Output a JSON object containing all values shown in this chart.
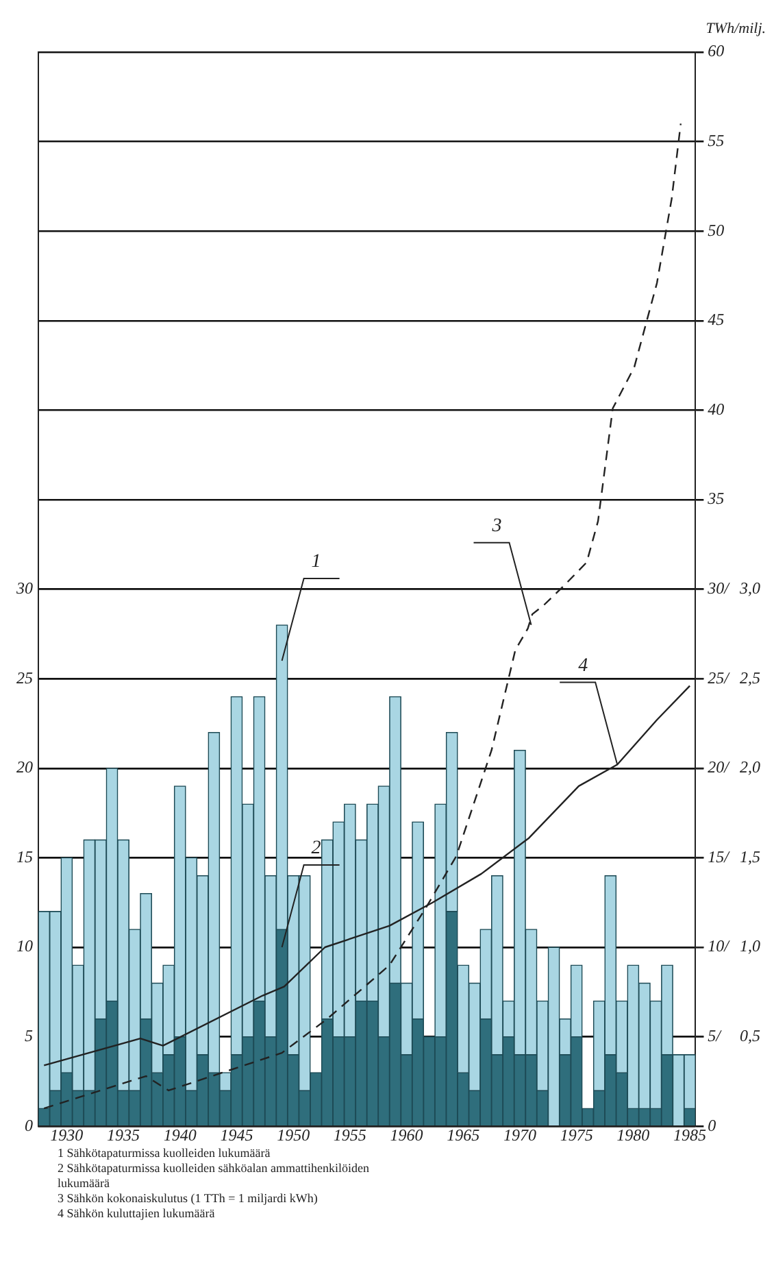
{
  "chart_data": {
    "type": "bar",
    "y2label": "TWh/milj.",
    "x": [
      1928,
      1929,
      1930,
      1931,
      1932,
      1933,
      1934,
      1935,
      1936,
      1937,
      1938,
      1939,
      1940,
      1941,
      1942,
      1943,
      1944,
      1945,
      1946,
      1947,
      1948,
      1949,
      1950,
      1951,
      1952,
      1953,
      1954,
      1955,
      1956,
      1957,
      1958,
      1959,
      1960,
      1961,
      1962,
      1963,
      1964,
      1965,
      1966,
      1967,
      1968,
      1969,
      1970,
      1971,
      1972,
      1973,
      1974,
      1975,
      1976,
      1977,
      1978,
      1979,
      1980,
      1981,
      1982,
      1983,
      1984,
      1985
    ],
    "xlim": [
      1927.5,
      1985.5
    ],
    "xticks": [
      1930,
      1935,
      1940,
      1945,
      1950,
      1955,
      1960,
      1965,
      1970,
      1975,
      1980,
      1985
    ],
    "ylim": [
      0,
      60
    ],
    "yticks": [
      0,
      5,
      10,
      15,
      20,
      25,
      30
    ],
    "y2lim": [
      0,
      60
    ],
    "y2ticks": [
      0,
      {
        "value": 5,
        "label": "5/"
      },
      {
        "value": 10,
        "label": "10/"
      },
      {
        "value": 15,
        "label": "15/"
      },
      {
        "value": 20,
        "label": "20/"
      },
      {
        "value": 25,
        "label": "25/"
      },
      {
        "value": 30,
        "label": "30/"
      },
      35,
      40,
      45,
      50,
      55,
      60
    ],
    "y3lim": [
      0,
      6
    ],
    "y3ticks": [
      {
        "value": 0.5,
        "label": "0,5"
      },
      {
        "value": 1,
        "label": "1,0"
      },
      {
        "value": 1.5,
        "label": "1,5"
      },
      {
        "value": 2,
        "label": "2,0"
      },
      {
        "value": 2.5,
        "label": "2,5"
      },
      {
        "value": 3,
        "label": "3,0"
      }
    ],
    "stacked": true,
    "grid": "y",
    "marker": "none",
    "series": [
      {
        "color": "#2f6e7c",
        "values": [
          1,
          2,
          3,
          2,
          2,
          6,
          7,
          2,
          2,
          6,
          3,
          4,
          5,
          2,
          4,
          3,
          2,
          4,
          5,
          7,
          5,
          11,
          4,
          2,
          3,
          6,
          5,
          5,
          7,
          7,
          5,
          8,
          4,
          6,
          5,
          5,
          12,
          3,
          2,
          6,
          4,
          5,
          4,
          4,
          2,
          0,
          4,
          5,
          1,
          2,
          4,
          3,
          1,
          1,
          1,
          4,
          0,
          1
        ]
      },
      {
        "color": "#a9d6e3",
        "values": [
          11,
          10,
          12,
          7,
          14,
          10,
          13,
          14,
          9,
          7,
          5,
          5,
          14,
          13,
          10,
          19,
          1,
          20,
          13,
          17,
          9,
          17,
          10,
          12,
          0,
          10,
          12,
          13,
          9,
          11,
          14,
          16,
          4,
          11,
          0,
          13,
          10,
          6,
          6,
          5,
          10,
          2,
          17,
          7,
          5,
          10,
          2,
          4,
          0,
          5,
          10,
          4,
          8,
          7,
          6,
          5,
          4,
          3
        ]
      },
      {
        "type": "line",
        "axis": "y2",
        "color": "#222222",
        "line_style": "dashed",
        "x": [
          1928,
          1937,
          1939,
          1949,
          1953,
          1958.5,
          1961.8,
          1964.4,
          1967.5,
          1969.6,
          1970.7,
          1971.1,
          1972.1,
          1973.9,
          1975.9,
          1976.9,
          1978.2,
          1980.1,
          1982.1,
          1983.4,
          1984.2
        ],
        "values": [
          1,
          2.8,
          2,
          4.1,
          6,
          9,
          12.3,
          15.1,
          21,
          26.6,
          27.8,
          28.6,
          29.1,
          30.2,
          31.5,
          33.8,
          40.1,
          42.4,
          47.1,
          51.8,
          56
        ]
      },
      {
        "type": "line",
        "axis": "y3",
        "color": "#222222",
        "line_style": "solid",
        "x": [
          1928,
          1936.5,
          1938.5,
          1947.3,
          1949.2,
          1952.8,
          1958.5,
          1962.3,
          1966.6,
          1970.8,
          1975.2,
          1978.6,
          1982.1,
          1985
        ],
        "values": [
          0.34,
          0.49,
          0.45,
          0.73,
          0.78,
          1.0,
          1.12,
          1.25,
          1.41,
          1.61,
          1.9,
          2.02,
          2.27,
          2.46
        ]
      }
    ],
    "annotations": [
      {
        "text": "1",
        "x": 1949,
        "y": 26
      },
      {
        "text": "2",
        "x": 1949,
        "y": 10
      },
      {
        "text": "3",
        "x": 1971,
        "y": 28
      },
      {
        "text": "4",
        "x": 1978.6,
        "y": 20.2
      },
      "1 Sähkötapaturmissa kuolleiden lukumäärä",
      "2 Sähkötapaturmissa kuolleiden sähköalan ammattihenkilöiden lukumäärä",
      "3 Sähkön kokonaiskulutus (1 TTh = 1 miljardi kWh)",
      "4 Sähkön kuluttajien lukumäärä"
    ]
  }
}
